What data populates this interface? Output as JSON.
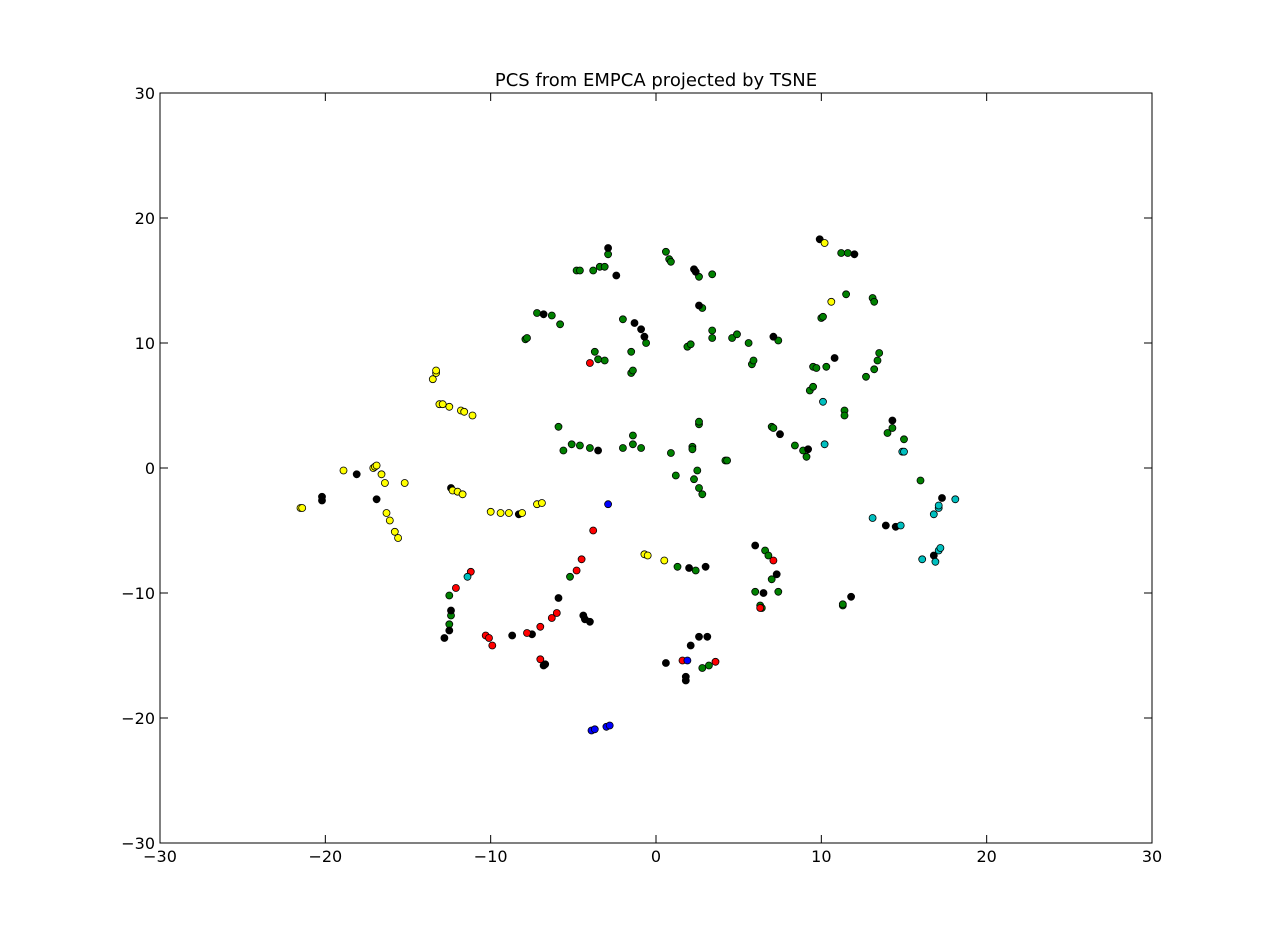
{
  "chart_data": {
    "type": "scatter",
    "title": "PCS from EMPCA projected by TSNE",
    "xlabel": "",
    "ylabel": "",
    "xlim": [
      -30,
      30
    ],
    "ylim": [
      -30,
      30
    ],
    "xticks": [
      -30,
      -20,
      -10,
      0,
      10,
      20,
      30
    ],
    "yticks": [
      -30,
      -20,
      -10,
      0,
      10,
      20,
      30
    ],
    "xtick_labels": [
      "−30",
      "−20",
      "−10",
      "0",
      "10",
      "20",
      "30"
    ],
    "ytick_labels": [
      "−30",
      "−20",
      "−10",
      "0",
      "10",
      "20",
      "30"
    ],
    "grid": false,
    "legend": "none",
    "series": [
      {
        "color": "#008000",
        "points": [
          [
            -4.8,
            15.8
          ],
          [
            -4.6,
            15.8
          ],
          [
            -3.8,
            15.8
          ],
          [
            -3.4,
            16.1
          ],
          [
            -3.1,
            16.1
          ],
          [
            -2.9,
            17.1
          ],
          [
            0.6,
            17.3
          ],
          [
            0.8,
            16.7
          ],
          [
            0.9,
            16.5
          ],
          [
            2.6,
            15.3
          ],
          [
            3.4,
            15.5
          ],
          [
            1.9,
            9.7
          ],
          [
            2.1,
            9.9
          ],
          [
            -7.2,
            12.4
          ],
          [
            -6.3,
            12.2
          ],
          [
            -5.8,
            11.5
          ],
          [
            -7.9,
            10.3
          ],
          [
            -7.8,
            10.4
          ],
          [
            -2.0,
            11.9
          ],
          [
            -0.6,
            10.0
          ],
          [
            -3.7,
            9.3
          ],
          [
            -3.5,
            8.7
          ],
          [
            -3.1,
            8.6
          ],
          [
            -1.5,
            9.3
          ],
          [
            -1.5,
            7.6
          ],
          [
            -1.4,
            7.8
          ],
          [
            2.8,
            12.8
          ],
          [
            3.4,
            10.4
          ],
          [
            3.4,
            11.0
          ],
          [
            4.6,
            10.4
          ],
          [
            4.9,
            10.7
          ],
          [
            5.6,
            10.0
          ],
          [
            5.8,
            8.3
          ],
          [
            5.9,
            8.6
          ],
          [
            7.4,
            10.2
          ],
          [
            9.5,
            8.1
          ],
          [
            9.7,
            8.0
          ],
          [
            10.3,
            8.1
          ],
          [
            9.3,
            6.2
          ],
          [
            9.5,
            6.5
          ],
          [
            10.0,
            12.0
          ],
          [
            10.1,
            12.1
          ],
          [
            11.2,
            17.2
          ],
          [
            11.6,
            17.2
          ],
          [
            11.5,
            13.9
          ],
          [
            13.1,
            13.6
          ],
          [
            13.2,
            13.3
          ],
          [
            12.7,
            7.3
          ],
          [
            13.2,
            7.9
          ],
          [
            13.4,
            8.6
          ],
          [
            13.5,
            9.2
          ],
          [
            11.4,
            4.6
          ],
          [
            11.4,
            4.2
          ],
          [
            14.0,
            2.8
          ],
          [
            14.3,
            3.2
          ],
          [
            15.0,
            2.3
          ],
          [
            -5.9,
            3.3
          ],
          [
            -5.6,
            1.4
          ],
          [
            -5.1,
            1.9
          ],
          [
            -4.6,
            1.8
          ],
          [
            -4.0,
            1.6
          ],
          [
            -2.0,
            1.6
          ],
          [
            -1.4,
            2.6
          ],
          [
            -1.4,
            1.9
          ],
          [
            -0.9,
            1.6
          ],
          [
            0.9,
            1.2
          ],
          [
            2.2,
            1.7
          ],
          [
            2.2,
            1.5
          ],
          [
            2.6,
            3.5
          ],
          [
            2.6,
            3.7
          ],
          [
            4.2,
            0.6
          ],
          [
            4.3,
            0.6
          ],
          [
            7.0,
            3.3
          ],
          [
            7.1,
            3.2
          ],
          [
            8.4,
            1.8
          ],
          [
            8.9,
            1.4
          ],
          [
            9.1,
            0.9
          ],
          [
            1.2,
            -0.6
          ],
          [
            2.3,
            -0.9
          ],
          [
            2.5,
            -0.2
          ],
          [
            2.6,
            -1.6
          ],
          [
            2.8,
            -2.1
          ],
          [
            16.0,
            -1.0
          ],
          [
            1.3,
            -7.9
          ],
          [
            2.4,
            -8.2
          ],
          [
            -5.2,
            -8.7
          ],
          [
            -12.5,
            -10.2
          ],
          [
            -12.4,
            -11.8
          ],
          [
            -12.5,
            -12.5
          ],
          [
            6.0,
            -9.9
          ],
          [
            6.3,
            -11.0
          ],
          [
            6.4,
            -11.2
          ],
          [
            6.6,
            -6.6
          ],
          [
            6.8,
            -7.0
          ],
          [
            7.0,
            -8.9
          ],
          [
            7.4,
            -9.9
          ],
          [
            11.3,
            -11.0
          ],
          [
            11.3,
            -10.9
          ],
          [
            2.8,
            -16.0
          ],
          [
            3.2,
            -15.8
          ]
        ]
      },
      {
        "color": "#000000",
        "points": [
          [
            -2.9,
            17.6
          ],
          [
            -2.4,
            15.4
          ],
          [
            2.3,
            15.9
          ],
          [
            2.4,
            15.7
          ],
          [
            2.6,
            13.0
          ],
          [
            -6.8,
            12.3
          ],
          [
            -1.3,
            11.6
          ],
          [
            -0.9,
            11.1
          ],
          [
            -0.7,
            10.5
          ],
          [
            7.1,
            10.5
          ],
          [
            10.8,
            8.8
          ],
          [
            9.9,
            18.3
          ],
          [
            12.0,
            17.1
          ],
          [
            14.3,
            3.8
          ],
          [
            7.5,
            2.7
          ],
          [
            9.2,
            1.5
          ],
          [
            -3.5,
            1.4
          ],
          [
            -20.2,
            -2.3
          ],
          [
            -20.2,
            -2.6
          ],
          [
            -18.1,
            -0.5
          ],
          [
            -16.9,
            -2.5
          ],
          [
            -12.4,
            -1.6
          ],
          [
            -8.3,
            -3.7
          ],
          [
            17.3,
            -2.4
          ],
          [
            13.9,
            -4.6
          ],
          [
            14.5,
            -4.7
          ],
          [
            16.8,
            -7.0
          ],
          [
            2.0,
            -8.0
          ],
          [
            3.0,
            -7.9
          ],
          [
            6.0,
            -6.2
          ],
          [
            7.3,
            -8.5
          ],
          [
            6.5,
            -10.0
          ],
          [
            11.8,
            -10.3
          ],
          [
            -5.9,
            -10.4
          ],
          [
            -4.4,
            -11.8
          ],
          [
            -4.3,
            -12.1
          ],
          [
            -4.0,
            -12.3
          ],
          [
            -8.7,
            -13.4
          ],
          [
            -7.5,
            -13.3
          ],
          [
            -12.8,
            -13.6
          ],
          [
            -12.5,
            -13.0
          ],
          [
            -12.4,
            -11.4
          ],
          [
            -6.8,
            -15.8
          ],
          [
            -6.7,
            -15.7
          ],
          [
            0.6,
            -15.6
          ],
          [
            2.1,
            -14.2
          ],
          [
            2.6,
            -13.5
          ],
          [
            3.1,
            -13.5
          ],
          [
            1.8,
            -16.7
          ],
          [
            1.8,
            -17.0
          ]
        ]
      },
      {
        "color": "#ffff00",
        "points": [
          [
            -13.3,
            7.6
          ],
          [
            -13.5,
            7.1
          ],
          [
            -13.3,
            7.8
          ],
          [
            -13.1,
            5.1
          ],
          [
            -12.9,
            5.1
          ],
          [
            -12.5,
            4.9
          ],
          [
            -11.8,
            4.6
          ],
          [
            -11.6,
            4.5
          ],
          [
            -11.1,
            4.2
          ],
          [
            -21.5,
            -3.2
          ],
          [
            -21.4,
            -3.2
          ],
          [
            -18.9,
            -0.2
          ],
          [
            -17.1,
            0.0
          ],
          [
            -17.0,
            0.1
          ],
          [
            -16.9,
            0.2
          ],
          [
            -16.6,
            -0.5
          ],
          [
            -16.4,
            -1.2
          ],
          [
            -16.3,
            -3.6
          ],
          [
            -16.1,
            -4.2
          ],
          [
            -15.8,
            -5.1
          ],
          [
            -15.6,
            -5.6
          ],
          [
            -15.2,
            -1.2
          ],
          [
            -12.3,
            -1.8
          ],
          [
            -12.0,
            -1.9
          ],
          [
            -11.7,
            -2.1
          ],
          [
            -10.0,
            -3.5
          ],
          [
            -9.4,
            -3.6
          ],
          [
            -8.9,
            -3.6
          ],
          [
            -8.1,
            -3.6
          ],
          [
            -7.2,
            -2.9
          ],
          [
            -6.9,
            -2.8
          ],
          [
            -0.7,
            -6.9
          ],
          [
            -0.5,
            -7.0
          ],
          [
            0.5,
            -7.4
          ],
          [
            10.2,
            18.0
          ],
          [
            10.6,
            13.3
          ]
        ]
      },
      {
        "color": "#ff0000",
        "points": [
          [
            -4.0,
            8.4
          ],
          [
            -3.8,
            -5.0
          ],
          [
            -4.5,
            -7.3
          ],
          [
            -4.8,
            -8.2
          ],
          [
            -11.2,
            -8.3
          ],
          [
            -12.1,
            -9.6
          ],
          [
            -6.0,
            -11.6
          ],
          [
            -6.3,
            -12.0
          ],
          [
            -7.0,
            -12.7
          ],
          [
            -7.8,
            -13.2
          ],
          [
            -10.3,
            -13.4
          ],
          [
            -10.1,
            -13.6
          ],
          [
            -9.9,
            -14.2
          ],
          [
            -7.0,
            -15.3
          ],
          [
            7.1,
            -7.4
          ],
          [
            6.3,
            -11.2
          ],
          [
            1.6,
            -15.4
          ],
          [
            3.6,
            -15.5
          ]
        ]
      },
      {
        "color": "#0000ff",
        "points": [
          [
            -2.9,
            -2.9
          ],
          [
            1.9,
            -15.4
          ],
          [
            -3.9,
            -21.0
          ],
          [
            -3.7,
            -20.9
          ],
          [
            -3.0,
            -20.7
          ],
          [
            -2.8,
            -20.6
          ]
        ]
      },
      {
        "color": "#00bfbf",
        "points": [
          [
            10.1,
            5.3
          ],
          [
            10.2,
            1.9
          ],
          [
            14.9,
            1.3
          ],
          [
            15.0,
            1.3
          ],
          [
            18.1,
            -2.5
          ],
          [
            13.1,
            -4.0
          ],
          [
            14.8,
            -4.6
          ],
          [
            16.8,
            -3.7
          ],
          [
            17.1,
            -3.2
          ],
          [
            17.1,
            -3.0
          ],
          [
            16.1,
            -7.3
          ],
          [
            16.9,
            -7.5
          ],
          [
            17.1,
            -6.6
          ],
          [
            17.2,
            -6.4
          ],
          [
            -11.4,
            -8.7
          ]
        ]
      }
    ]
  }
}
